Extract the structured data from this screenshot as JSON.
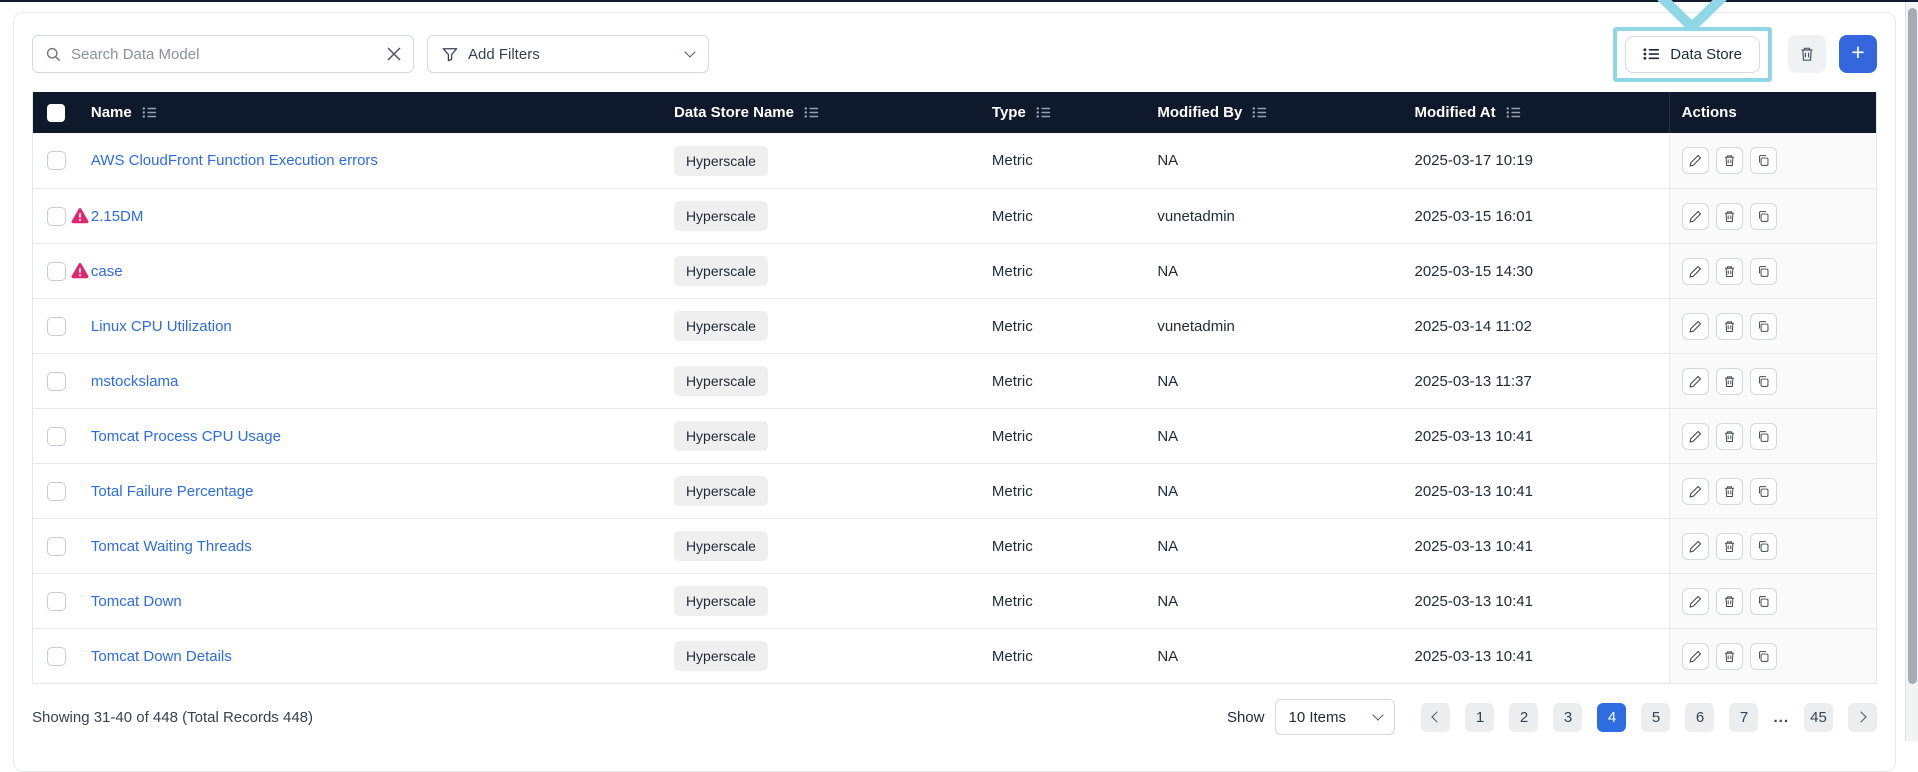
{
  "colors": {
    "header_bg": "#0e1a2b",
    "link_blue": "#2d6be4",
    "accent_blue": "#2e6ce2",
    "add_button_blue": "#3566de",
    "warning_pink": "#e2256d",
    "highlight_cyan": "#8fd7e6",
    "badge_bg": "#efefef"
  },
  "toolbar": {
    "search_placeholder": "Search Data Model",
    "add_filters_label": "Add Filters",
    "data_store_label": "Data Store",
    "add_button_label": "+"
  },
  "table": {
    "columns": [
      {
        "label": "Name"
      },
      {
        "label": "Data Store Name"
      },
      {
        "label": "Type"
      },
      {
        "label": "Modified By"
      },
      {
        "label": "Modified At"
      },
      {
        "label": "Actions"
      }
    ],
    "rows": [
      {
        "name": "AWS CloudFront Function Execution errors",
        "warning": false,
        "data_store_name": "Hyperscale",
        "type": "Metric",
        "modified_by": "NA",
        "modified_at": "2025-03-17 10:19"
      },
      {
        "name": "2.15DM",
        "warning": true,
        "data_store_name": "Hyperscale",
        "type": "Metric",
        "modified_by": "vunetadmin",
        "modified_at": "2025-03-15 16:01"
      },
      {
        "name": "case",
        "warning": true,
        "data_store_name": "Hyperscale",
        "type": "Metric",
        "modified_by": "NA",
        "modified_at": "2025-03-15 14:30"
      },
      {
        "name": "Linux CPU Utilization",
        "warning": false,
        "data_store_name": "Hyperscale",
        "type": "Metric",
        "modified_by": "vunetadmin",
        "modified_at": "2025-03-14 11:02"
      },
      {
        "name": "mstockslama",
        "warning": false,
        "data_store_name": "Hyperscale",
        "type": "Metric",
        "modified_by": "NA",
        "modified_at": "2025-03-13 11:37"
      },
      {
        "name": "Tomcat Process CPU Usage",
        "warning": false,
        "data_store_name": "Hyperscale",
        "type": "Metric",
        "modified_by": "NA",
        "modified_at": "2025-03-13 10:41"
      },
      {
        "name": "Total Failure Percentage",
        "warning": false,
        "data_store_name": "Hyperscale",
        "type": "Metric",
        "modified_by": "NA",
        "modified_at": "2025-03-13 10:41"
      },
      {
        "name": "Tomcat Waiting Threads",
        "warning": false,
        "data_store_name": "Hyperscale",
        "type": "Metric",
        "modified_by": "NA",
        "modified_at": "2025-03-13 10:41"
      },
      {
        "name": "Tomcat Down",
        "warning": false,
        "data_store_name": "Hyperscale",
        "type": "Metric",
        "modified_by": "NA",
        "modified_at": "2025-03-13 10:41"
      },
      {
        "name": "Tomcat Down Details",
        "warning": false,
        "data_store_name": "Hyperscale",
        "type": "Metric",
        "modified_by": "NA",
        "modified_at": "2025-03-13 10:41"
      }
    ]
  },
  "pagination": {
    "summary": "Showing 31-40 of 448 (Total Records 448)",
    "show_label": "Show",
    "page_size_value": "10 Items",
    "pages": [
      "1",
      "2",
      "3",
      "4",
      "5",
      "6",
      "7"
    ],
    "active_page": "4",
    "ellipsis": "...",
    "last_page": "45"
  }
}
